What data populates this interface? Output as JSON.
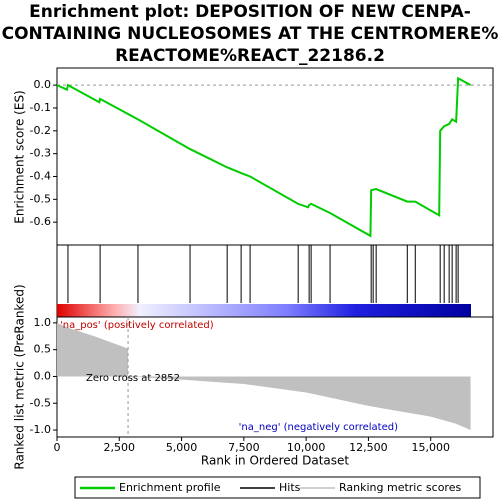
{
  "chart_data": [
    {
      "type": "line",
      "title": [
        "Enrichment plot: DEPOSITION OF NEW CENPA-",
        "CONTAINING NUCLEOSOMES AT THE CENTROMERE%",
        "REACTOME%REACT_22186.2"
      ],
      "y_label": "Enrichment score (ES)",
      "series": [
        {
          "name": "Enrichment profile",
          "color": "#00cc00",
          "x": [
            0,
            400,
            440,
            1700,
            1730,
            3250,
            5340,
            6830,
            7390,
            7750,
            9680,
            10080,
            10120,
            10200,
            10960,
            12580,
            12610,
            12810,
            14060,
            14380,
            15340,
            15380,
            15540,
            15740,
            15860,
            16020,
            16100,
            16600
          ],
          "values": [
            0,
            -0.02,
            0,
            -0.075,
            -0.06,
            -0.15,
            -0.28,
            -0.36,
            -0.385,
            -0.4,
            -0.52,
            -0.535,
            -0.525,
            -0.52,
            -0.56,
            -0.66,
            -0.46,
            -0.455,
            -0.51,
            -0.51,
            -0.57,
            -0.2,
            -0.18,
            -0.17,
            -0.15,
            -0.16,
            0.03,
            0
          ]
        }
      ],
      "hits_name": "Hits",
      "hits_color": "#000000",
      "hits": [
        440,
        1730,
        3250,
        5340,
        6830,
        7390,
        7750,
        9680,
        10120,
        10200,
        10960,
        12610,
        12690,
        12810,
        14060,
        14380,
        15380,
        15540,
        15740,
        15860,
        16020,
        16100
      ],
      "xlim": [
        0,
        17500
      ],
      "ylim": [
        -0.7,
        0.075
      ],
      "yticks": [
        {
          "value": 0,
          "label": "0.0"
        },
        {
          "value": -0.1,
          "label": "-0.1"
        },
        {
          "value": -0.2,
          "label": "-0.2"
        },
        {
          "value": -0.3,
          "label": "-0.3"
        },
        {
          "value": -0.4,
          "label": "-0.4"
        },
        {
          "value": -0.5,
          "label": "-0.5"
        },
        {
          "value": -0.6,
          "label": "-0.6"
        }
      ]
    },
    {
      "type": "area",
      "y_label": [
        "Ranked list metric (PreRanked)"
      ],
      "x_label": "Rank in Ordered Dataset",
      "series": [
        {
          "name": "Ranking metric scores",
          "color": "#c0c0c0",
          "x": [
            0,
            500,
            1500,
            2500,
            2852,
            2852,
            5000,
            7500,
            10000,
            12500,
            15000,
            16000,
            16600
          ],
          "values": [
            1.0,
            0.9,
            0.75,
            0.58,
            0.52,
            0,
            -0.06,
            -0.14,
            -0.3,
            -0.55,
            -0.75,
            -0.88,
            -1.0
          ]
        }
      ],
      "annotations": [
        "'na_pos' (positively correlated)",
        "Zero cross at 2852",
        "'na_neg' (negatively correlated)"
      ],
      "zero_cross": 2852,
      "xlim": [
        0,
        17500
      ],
      "ylim": [
        -1.13,
        1.11
      ],
      "yticks": [
        {
          "value": 1,
          "label": "1.0"
        },
        {
          "value": 0.5,
          "label": "0.5"
        },
        {
          "value": 0,
          "label": "0.0"
        },
        {
          "value": -0.5,
          "label": "-0.5"
        },
        {
          "value": -1,
          "label": "-1.0"
        }
      ],
      "xticks": [
        0,
        {
          "value": 2500,
          "label": "2,500"
        },
        {
          "value": 5000,
          "label": "5,000"
        },
        {
          "value": 7500,
          "label": "7,500"
        },
        {
          "value": 10000,
          "label": "10,000"
        },
        {
          "value": 12500,
          "label": "12,500"
        },
        {
          "value": 15000,
          "label": "15,000"
        }
      ]
    }
  ]
}
